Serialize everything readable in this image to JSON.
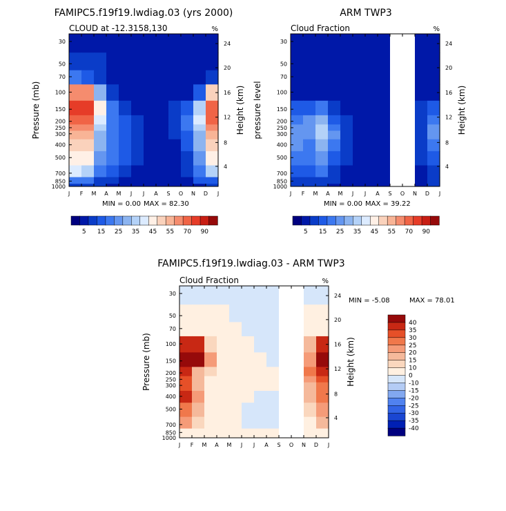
{
  "chart_data": [
    {
      "type": "heatmap",
      "title": "FAMIPC5.f19f19.lwdiag.03 (yrs 2000)",
      "subtitle_left": "CLOUD at -12.3158,130",
      "subtitle_right": "%",
      "ylabel": "Pressure (mb)",
      "ylabel_right": "Height (km)",
      "x_tick_labels": [
        "J",
        "F",
        "M",
        "A",
        "M",
        "J",
        "J",
        "A",
        "S",
        "O",
        "N",
        "D",
        "J"
      ],
      "pressure_levels": [
        30,
        50,
        70,
        100,
        150,
        200,
        250,
        300,
        400,
        500,
        700,
        850,
        1000
      ],
      "height_ticks": [
        24,
        20,
        16,
        12,
        8,
        4
      ],
      "min_label": "MIN =    0.00",
      "max_label": "MAX =   82.30",
      "colorbar_labels": [
        "5",
        "15",
        "25",
        "35",
        "45",
        "55",
        "70",
        "90"
      ],
      "colors": [
        "#00007f",
        "#0018a8",
        "#0a3cc8",
        "#1e5ae6",
        "#3c78f0",
        "#6496f0",
        "#8cb4f0",
        "#b4d2f8",
        "#dcebff",
        "#fff0e6",
        "#fad2bc",
        "#f8b496",
        "#f58c6e",
        "#f06446",
        "#e63c28",
        "#c81e14",
        "#960a0a"
      ],
      "missing_months": [],
      "values": [
        [
          0,
          0,
          0,
          0,
          0,
          0,
          0,
          0,
          0,
          0,
          0,
          0,
          0
        ],
        [
          5,
          5,
          5,
          0,
          0,
          0,
          0,
          0,
          0,
          0,
          0,
          0,
          5
        ],
        [
          15,
          10,
          5,
          0,
          0,
          0,
          0,
          0,
          0,
          0,
          0,
          5,
          15
        ],
        [
          55,
          55,
          25,
          5,
          0,
          0,
          0,
          0,
          0,
          0,
          10,
          45,
          55
        ],
        [
          70,
          70,
          40,
          15,
          5,
          0,
          0,
          0,
          5,
          10,
          30,
          65,
          70
        ],
        [
          65,
          65,
          35,
          15,
          10,
          5,
          0,
          0,
          5,
          15,
          35,
          60,
          65
        ],
        [
          55,
          55,
          30,
          15,
          10,
          5,
          0,
          0,
          5,
          15,
          30,
          55,
          55
        ],
        [
          50,
          50,
          25,
          15,
          10,
          5,
          0,
          0,
          5,
          10,
          25,
          50,
          50
        ],
        [
          45,
          45,
          25,
          15,
          10,
          5,
          0,
          0,
          0,
          10,
          25,
          45,
          45
        ],
        [
          40,
          40,
          20,
          15,
          10,
          5,
          0,
          0,
          0,
          5,
          20,
          40,
          40
        ],
        [
          35,
          30,
          15,
          10,
          5,
          0,
          0,
          0,
          0,
          5,
          15,
          30,
          35
        ],
        [
          15,
          15,
          5,
          5,
          0,
          0,
          0,
          0,
          0,
          0,
          10,
          10,
          15
        ],
        [
          5,
          5,
          5,
          0,
          0,
          0,
          0,
          0,
          0,
          0,
          0,
          5,
          5
        ]
      ]
    },
    {
      "type": "heatmap",
      "title": "ARM TWP3",
      "subtitle_left": "Cloud Fraction",
      "subtitle_right": "%",
      "ylabel": "pressure level",
      "ylabel_right": "Height (km)",
      "x_tick_labels": [
        "J",
        "F",
        "M",
        "A",
        "M",
        "J",
        "J",
        "A",
        "S",
        "O",
        "N",
        "D",
        "J"
      ],
      "pressure_levels": [
        30,
        50,
        70,
        100,
        150,
        200,
        250,
        300,
        400,
        500,
        700,
        850,
        1000
      ],
      "height_ticks": [
        24,
        20,
        16,
        12,
        8,
        4
      ],
      "min_label": "MIN =    0.00",
      "max_label": "MAX =   39.22",
      "colorbar_labels": [
        "5",
        "15",
        "25",
        "35",
        "45",
        "55",
        "70",
        "90"
      ],
      "colors": [
        "#00007f",
        "#0018a8",
        "#0a3cc8",
        "#1e5ae6",
        "#3c78f0",
        "#6496f0",
        "#8cb4f0",
        "#b4d2f8",
        "#dcebff",
        "#fff0e6",
        "#fad2bc",
        "#f8b496",
        "#f58c6e",
        "#f06446",
        "#e63c28",
        "#c81e14",
        "#960a0a"
      ],
      "missing_months": [
        8,
        9
      ],
      "values": [
        [
          0,
          0,
          0,
          0,
          0,
          0,
          0,
          0,
          null,
          null,
          0,
          0,
          0
        ],
        [
          0,
          0,
          0,
          0,
          0,
          0,
          0,
          0,
          null,
          null,
          0,
          0,
          0
        ],
        [
          0,
          0,
          0,
          0,
          0,
          0,
          0,
          0,
          null,
          null,
          0,
          0,
          0
        ],
        [
          0,
          0,
          0,
          0,
          0,
          0,
          0,
          0,
          null,
          null,
          0,
          0,
          5
        ],
        [
          10,
          10,
          15,
          5,
          0,
          0,
          0,
          0,
          null,
          null,
          5,
          10,
          15
        ],
        [
          15,
          20,
          25,
          10,
          5,
          0,
          0,
          0,
          null,
          null,
          5,
          15,
          25
        ],
        [
          20,
          20,
          30,
          15,
          5,
          0,
          0,
          0,
          null,
          null,
          5,
          20,
          30
        ],
        [
          20,
          20,
          30,
          20,
          5,
          0,
          0,
          0,
          null,
          null,
          5,
          20,
          30
        ],
        [
          20,
          15,
          25,
          15,
          5,
          0,
          0,
          0,
          null,
          null,
          5,
          15,
          25
        ],
        [
          15,
          15,
          20,
          10,
          5,
          0,
          0,
          0,
          null,
          null,
          5,
          10,
          15
        ],
        [
          10,
          10,
          15,
          5,
          0,
          0,
          0,
          0,
          null,
          null,
          0,
          5,
          10
        ],
        [
          5,
          5,
          5,
          5,
          0,
          0,
          0,
          0,
          null,
          null,
          0,
          5,
          5
        ],
        [
          5,
          5,
          5,
          0,
          0,
          0,
          0,
          0,
          null,
          null,
          0,
          5,
          5
        ]
      ]
    },
    {
      "type": "heatmap",
      "title": "FAMIPC5.f19f19.lwdiag.03 - ARM TWP3",
      "subtitle_left": "Cloud Fraction",
      "subtitle_right": "%",
      "ylabel": "Pressure (mb)",
      "ylabel_right": "Height (km)",
      "x_tick_labels": [
        "J",
        "F",
        "M",
        "A",
        "M",
        "J",
        "J",
        "A",
        "S",
        "O",
        "N",
        "D",
        "J"
      ],
      "pressure_levels": [
        30,
        50,
        70,
        100,
        150,
        200,
        250,
        300,
        400,
        500,
        700,
        850,
        1000
      ],
      "height_ticks": [
        24,
        20,
        16,
        12,
        8,
        4
      ],
      "min_label": "MIN =   -5.08",
      "max_label": "MAX =   78.01",
      "colorbar_labels": [
        "40",
        "35",
        "30",
        "25",
        "20",
        "15",
        "10",
        "0",
        "-10",
        "-15",
        "-20",
        "-25",
        "-30",
        "-35",
        "-40"
      ],
      "colors": [
        "#00007f",
        "#0020b4",
        "#1a46d2",
        "#3264e6",
        "#5082f0",
        "#82a8f0",
        "#b4ccf5",
        "#d6e6fa",
        "#fff0e1",
        "#fad7be",
        "#f5b99b",
        "#f59b78",
        "#f0784b",
        "#e65028",
        "#c82814",
        "#960a0a"
      ],
      "missing_months": [
        8,
        9
      ],
      "values": [
        [
          -5,
          -5,
          -5,
          -5,
          -5,
          -5,
          -5,
          -5,
          null,
          null,
          -5,
          -5,
          -5
        ],
        [
          5,
          5,
          5,
          5,
          -5,
          -5,
          -5,
          -5,
          null,
          null,
          5,
          5,
          5
        ],
        [
          5,
          5,
          5,
          5,
          5,
          -5,
          -5,
          -5,
          null,
          null,
          5,
          5,
          5
        ],
        [
          40,
          40,
          15,
          5,
          5,
          5,
          -5,
          -5,
          null,
          null,
          20,
          40,
          40
        ],
        [
          45,
          45,
          25,
          10,
          5,
          5,
          5,
          -5,
          null,
          null,
          25,
          45,
          45
        ],
        [
          40,
          20,
          15,
          10,
          5,
          5,
          5,
          5,
          null,
          null,
          30,
          40,
          40
        ],
        [
          35,
          20,
          10,
          10,
          5,
          5,
          5,
          5,
          null,
          null,
          25,
          35,
          35
        ],
        [
          35,
          20,
          10,
          5,
          5,
          5,
          5,
          5,
          null,
          null,
          20,
          30,
          35
        ],
        [
          40,
          25,
          10,
          5,
          5,
          5,
          -5,
          -5,
          null,
          null,
          20,
          30,
          40
        ],
        [
          30,
          20,
          10,
          5,
          5,
          -5,
          -5,
          -5,
          null,
          null,
          15,
          25,
          30
        ],
        [
          25,
          15,
          5,
          5,
          5,
          -5,
          -5,
          -5,
          null,
          null,
          10,
          20,
          25
        ],
        [
          10,
          5,
          5,
          5,
          5,
          5,
          5,
          5,
          null,
          null,
          5,
          10,
          10
        ],
        [
          5,
          5,
          5,
          5,
          5,
          5,
          5,
          5,
          null,
          null,
          5,
          5,
          5
        ]
      ]
    }
  ]
}
